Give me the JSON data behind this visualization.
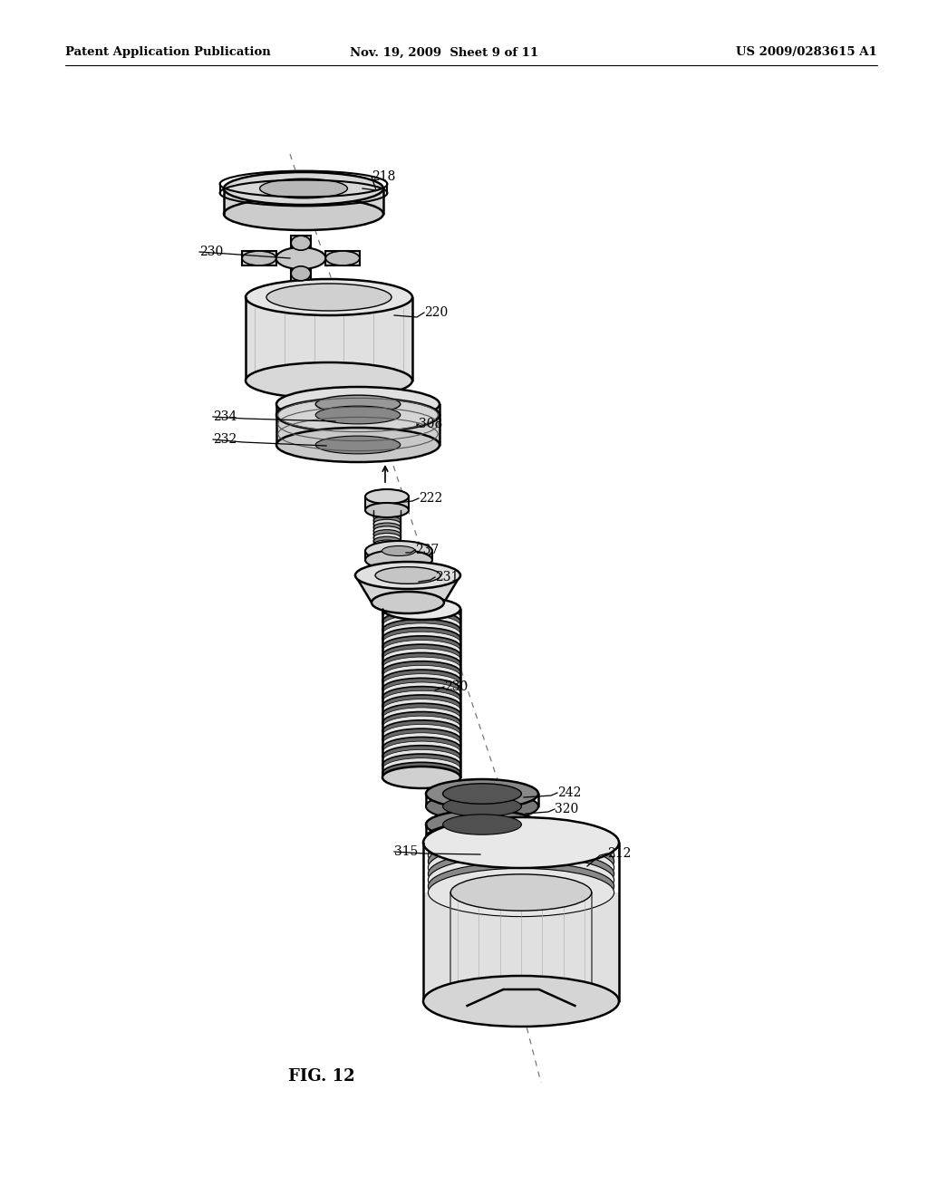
{
  "patent_header_left": "Patent Application Publication",
  "patent_header_mid": "Nov. 19, 2009  Sheet 9 of 11",
  "patent_header_right": "US 2009/0283615 A1",
  "fig_caption": "FIG. 12",
  "bg_color": "#ffffff"
}
